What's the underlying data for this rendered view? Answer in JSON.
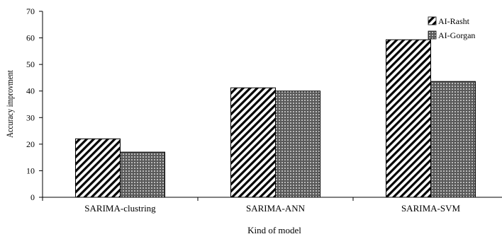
{
  "chart_data": {
    "type": "bar",
    "categories": [
      "SARIMA-clustring",
      "SARIMA-ANN",
      "SARIMA-SVM"
    ],
    "series": [
      {
        "name": "AI-Rasht",
        "values": [
          22,
          41.2,
          59.3
        ],
        "pattern": "diagonal-hatch"
      },
      {
        "name": "AI-Gorgan",
        "values": [
          17,
          40,
          43.6
        ],
        "pattern": "dotted"
      }
    ],
    "title": "",
    "xlabel": "Kind of model",
    "ylabel": "Accuracy improvment",
    "ylim": [
      0,
      70
    ],
    "yticks": [
      0,
      10,
      20,
      30,
      40,
      50,
      60,
      70
    ],
    "grid": false,
    "legend_position": "top-right",
    "colors": {
      "bar_outline": "#000000",
      "background": "#ffffff"
    }
  }
}
